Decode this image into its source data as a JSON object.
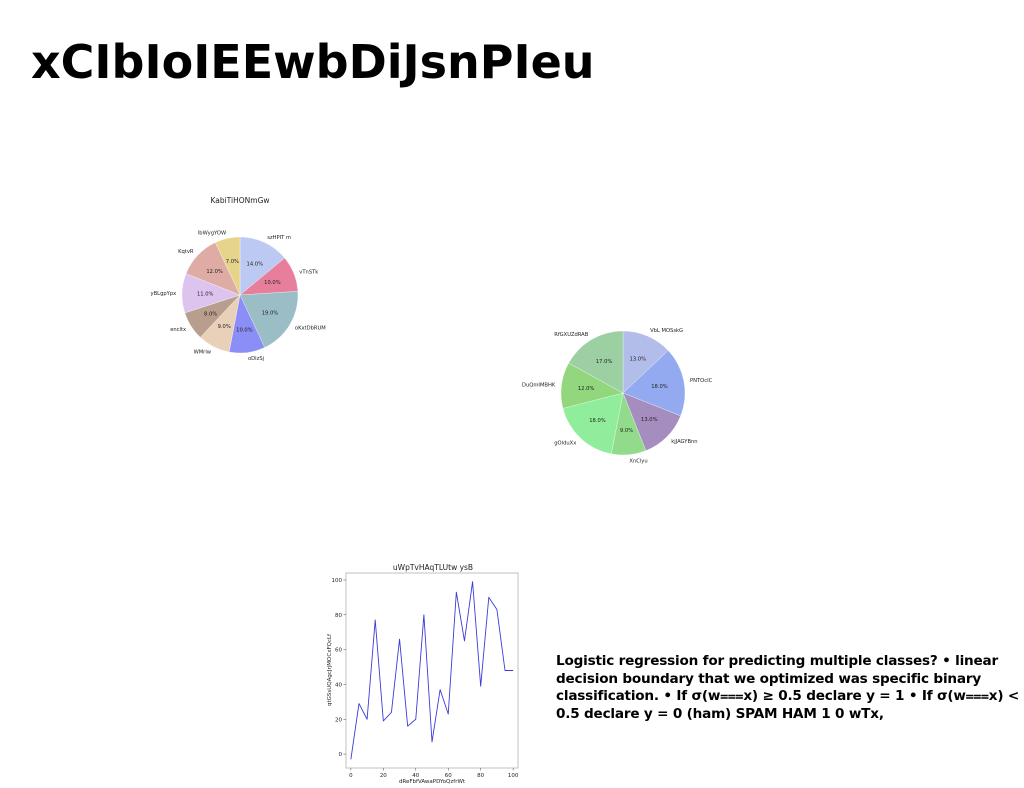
{
  "slide": {
    "title": "xCIbIoIEEwbDiJsnPIeu",
    "note": "Logistic regression for predicting multiple classes? • linear decision boundary that we optimized was specific binary classification. • If σ(w⩶x) ≥ 0.5 declare y = 1 • If σ(w⩶x) < 0.5 declare y = 0 (ham) SPAM HAM 1 0 wTx,"
  },
  "chart_data": [
    {
      "type": "pie",
      "title": "KabiTiHONmGw",
      "labels": [
        "szHPIT m",
        "vTnSTk",
        "oKxtDbRUM",
        "oDlzSj",
        "WMrlw",
        "encltx",
        "yBLgpYpx",
        "KqtvR",
        "lbWygYOW"
      ],
      "values": [
        14.0,
        10.0,
        19.0,
        10.0,
        9.0,
        8.0,
        11.0,
        12.0,
        7.0
      ],
      "value_labels": [
        "14.0%",
        "10.0%",
        "19.0%",
        "10.0%",
        "9.0%",
        "8.0%",
        "11.0%",
        "12.0%",
        "7.0%"
      ],
      "colors": [
        "#bccaf3",
        "#e77f9c",
        "#9bbec6",
        "#8a8ef6",
        "#e9d1b9",
        "#b79e8d",
        "#dcc4ef",
        "#dfaba5",
        "#e7d48b"
      ],
      "start_angle_deg": 90,
      "direction": "clockwise"
    },
    {
      "type": "pie",
      "title": "",
      "labels": [
        "VbL MOSskG",
        "PNTOcIC",
        "kjJAGYBnn",
        "XnClyu",
        "gOlduXx",
        "DuQmIMBHK",
        "RfGXUZdRAB"
      ],
      "values": [
        13.0,
        18.0,
        13.0,
        9.0,
        18.0,
        12.0,
        17.0
      ],
      "value_labels": [
        "13.0%",
        "18.0%",
        "13.0%",
        "9.0%",
        "18.0%",
        "12.0%",
        "17.0%"
      ],
      "colors": [
        "#b3bdea",
        "#93aaf0",
        "#a68dbf",
        "#93db8c",
        "#90ed9b",
        "#92d67e",
        "#9ccfa2"
      ],
      "start_angle_deg": 90,
      "direction": "clockwise"
    },
    {
      "type": "line",
      "title": "uWpTvHAqTLUtw ysB",
      "xlabel": "dReFbfVAwaPDYoQzfrWt",
      "ylabel": "qtGSsUQAgcJrjMOCxFQcLf",
      "x": [
        0,
        5,
        10,
        15,
        20,
        25,
        30,
        35,
        40,
        45,
        50,
        55,
        60,
        65,
        70,
        75,
        80,
        85,
        90,
        95,
        100
      ],
      "series": [
        {
          "values": [
            -3,
            29,
            20,
            77,
            19,
            24,
            66,
            16,
            20,
            80,
            7,
            37,
            23,
            93,
            65,
            99,
            39,
            90,
            83,
            48,
            48
          ],
          "color": "#3b3bd9"
        }
      ],
      "xlim": [
        -3,
        103
      ],
      "ylim": [
        -8,
        104
      ],
      "xticks": [
        0,
        20,
        40,
        60,
        80,
        100
      ],
      "yticks": [
        0,
        20,
        40,
        60,
        80,
        100
      ],
      "grid": false
    }
  ]
}
